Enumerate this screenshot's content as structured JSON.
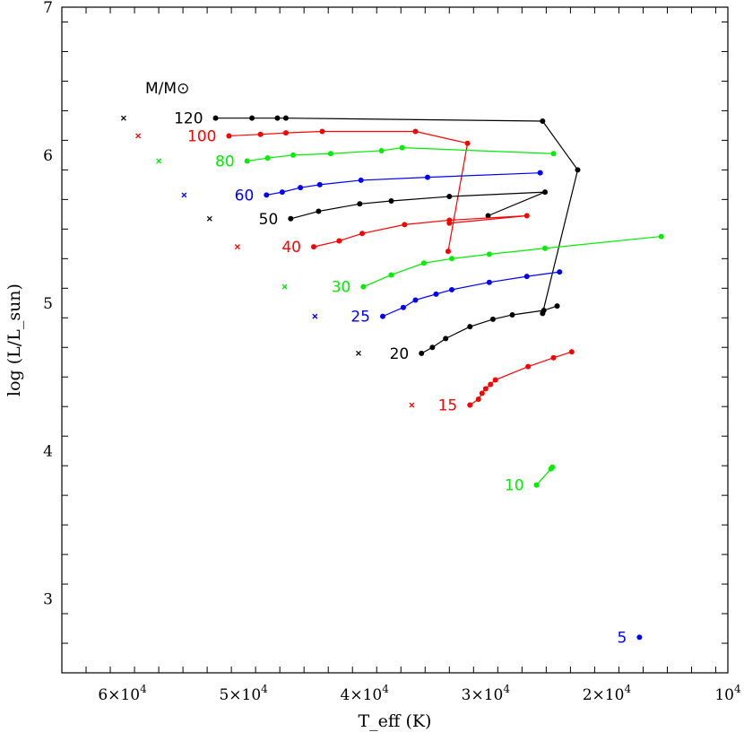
{
  "chart_data": {
    "type": "scatter",
    "title": "",
    "xlabel": "T_eff (K)",
    "ylabel": "log (L/L_sun)",
    "xlim": [
      65000,
      10000
    ],
    "ylim": [
      2.5,
      7.0
    ],
    "x_ticks": [
      {
        "value": 60000,
        "label": "6×10",
        "exp": "4"
      },
      {
        "value": 50000,
        "label": "5×10",
        "exp": "4"
      },
      {
        "value": 40000,
        "label": "4×10",
        "exp": "4"
      },
      {
        "value": 30000,
        "label": "3×10",
        "exp": "4"
      },
      {
        "value": 20000,
        "label": "2×10",
        "exp": "4"
      },
      {
        "value": 10000,
        "label": "10",
        "exp": "4"
      }
    ],
    "y_ticks": [
      3,
      4,
      5,
      6,
      7
    ],
    "x_minor_step": 2000,
    "y_minor_step": 0.2,
    "legend_header": "M/M⊙",
    "grid": false,
    "colors": {
      "black": "#000000",
      "red": "#ff0000",
      "green": "#00ee00",
      "blue": "#0000ff"
    },
    "series": [
      {
        "name": "120",
        "color": "#000000",
        "zams": [
          59900,
          6.25
        ],
        "points": [
          [
            52300,
            6.25
          ],
          [
            49300,
            6.25
          ],
          [
            47200,
            6.25
          ],
          [
            46500,
            6.25
          ],
          [
            25300,
            6.23
          ],
          [
            22400,
            5.9
          ],
          [
            25300,
            4.93
          ]
        ]
      },
      {
        "name": "100",
        "color": "#ff0000",
        "zams": [
          58700,
          6.13
        ],
        "points": [
          [
            51200,
            6.13
          ],
          [
            48600,
            6.14
          ],
          [
            46500,
            6.15
          ],
          [
            43500,
            6.16
          ],
          [
            35800,
            6.16
          ],
          [
            31500,
            6.08
          ],
          [
            33100,
            5.35
          ]
        ]
      },
      {
        "name": "80",
        "color": "#00ee00",
        "zams": [
          57000,
          5.96
        ],
        "points": [
          [
            49700,
            5.96
          ],
          [
            48000,
            5.98
          ],
          [
            45900,
            6.0
          ],
          [
            42800,
            6.01
          ],
          [
            38600,
            6.03
          ],
          [
            36900,
            6.05
          ],
          [
            24400,
            6.01
          ]
        ]
      },
      {
        "name": "60",
        "color": "#0000ff",
        "zams": [
          54900,
          5.73
        ],
        "points": [
          [
            48100,
            5.73
          ],
          [
            46800,
            5.75
          ],
          [
            45300,
            5.78
          ],
          [
            43700,
            5.8
          ],
          [
            40300,
            5.83
          ],
          [
            34800,
            5.85
          ],
          [
            25500,
            5.88
          ]
        ]
      },
      {
        "name": "50",
        "color": "#000000",
        "zams": [
          52800,
          5.57
        ],
        "points": [
          [
            46100,
            5.57
          ],
          [
            43800,
            5.62
          ],
          [
            40400,
            5.67
          ],
          [
            37800,
            5.69
          ],
          [
            33000,
            5.72
          ],
          [
            25100,
            5.75
          ],
          [
            29800,
            5.59
          ]
        ]
      },
      {
        "name": "40",
        "color": "#ff0000",
        "zams": [
          50500,
          5.38
        ],
        "points": [
          [
            44200,
            5.38
          ],
          [
            42100,
            5.42
          ],
          [
            40200,
            5.47
          ],
          [
            36700,
            5.53
          ],
          [
            33000,
            5.56
          ],
          [
            26600,
            5.59
          ],
          [
            33000,
            5.54
          ]
        ]
      },
      {
        "name": "30",
        "color": "#00ee00",
        "zams": [
          46600,
          5.11
        ],
        "points": [
          [
            40100,
            5.11
          ],
          [
            37800,
            5.19
          ],
          [
            35100,
            5.27
          ],
          [
            32800,
            5.3
          ],
          [
            29700,
            5.33
          ],
          [
            25100,
            5.37
          ],
          [
            15500,
            5.45
          ]
        ]
      },
      {
        "name": "25",
        "color": "#0000ff",
        "zams": [
          44100,
          4.91
        ],
        "points": [
          [
            38500,
            4.91
          ],
          [
            36800,
            4.97
          ],
          [
            35800,
            5.02
          ],
          [
            34100,
            5.06
          ],
          [
            32800,
            5.09
          ],
          [
            29700,
            5.14
          ],
          [
            26600,
            5.18
          ],
          [
            23900,
            5.21
          ]
        ]
      },
      {
        "name": "20",
        "color": "#000000",
        "zams": [
          40500,
          4.66
        ],
        "points": [
          [
            35300,
            4.66
          ],
          [
            34400,
            4.7
          ],
          [
            33300,
            4.76
          ],
          [
            31300,
            4.84
          ],
          [
            29400,
            4.89
          ],
          [
            27800,
            4.92
          ],
          [
            25200,
            4.95
          ],
          [
            24100,
            4.98
          ]
        ]
      },
      {
        "name": "15",
        "color": "#ff0000",
        "zams": [
          36100,
          4.31
        ],
        "points": [
          [
            31300,
            4.31
          ],
          [
            30600,
            4.35
          ],
          [
            30300,
            4.39
          ],
          [
            30000,
            4.42
          ],
          [
            29600,
            4.45
          ],
          [
            29200,
            4.48
          ],
          [
            26500,
            4.57
          ],
          [
            24400,
            4.63
          ],
          [
            22900,
            4.67
          ]
        ]
      },
      {
        "name": "10",
        "color": "#00ee00",
        "points": [
          [
            25800,
            3.77
          ],
          [
            24600,
            3.88
          ],
          [
            24500,
            3.89
          ]
        ]
      },
      {
        "name": "5",
        "color": "#0000ff",
        "points": [
          [
            17300,
            2.74
          ]
        ]
      }
    ]
  }
}
